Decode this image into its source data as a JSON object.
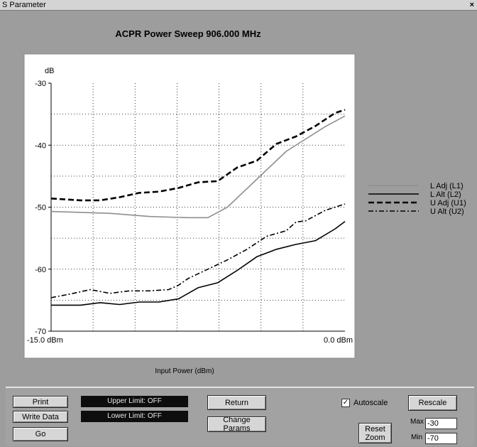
{
  "window": {
    "title": "S Parameter",
    "close_glyph": "×"
  },
  "chart_data": {
    "type": "line",
    "title": "ACPR Power Sweep 906.000 MHz",
    "xlabel": "Input Power (dBm)",
    "ylabel": "dB",
    "xlim": [
      -15,
      0
    ],
    "ylim": [
      -70,
      -30
    ],
    "x_tick_labels": [
      "-15.0 dBm",
      "0.0 dBm"
    ],
    "y_ticks": [
      -30,
      -40,
      -50,
      -60,
      -70
    ],
    "grid": true,
    "legend_position": "right",
    "series": [
      {
        "name": "L Adj (L1)",
        "style": "solid",
        "color": "#8e8e8e",
        "x": [
          -15,
          -12,
          -10,
          -9,
          -8,
          -7,
          -6,
          -5,
          -4,
          -3,
          -2,
          -1,
          0
        ],
        "y": [
          -50.7,
          -51.0,
          -51.5,
          -51.6,
          -51.7,
          -51.7,
          -50.0,
          -47.0,
          -44.0,
          -41.0,
          -39.0,
          -37.0,
          -35.3
        ]
      },
      {
        "name": "L Alt (L2)",
        "style": "solid",
        "color": "#000000",
        "x": [
          -15,
          -13.5,
          -12.5,
          -11.5,
          -10.5,
          -9.5,
          -8.5,
          -7.5,
          -6.5,
          -5.5,
          -4.5,
          -3.5,
          -2.5,
          -1.5,
          -0.5,
          0
        ],
        "y": [
          -65.8,
          -65.8,
          -65.4,
          -65.7,
          -65.3,
          -65.3,
          -64.8,
          -63.0,
          -62.2,
          -60.2,
          -58.0,
          -56.8,
          -56.0,
          -55.4,
          -53.5,
          -52.3
        ]
      },
      {
        "name": "U Adj (U1)",
        "style": "dashed",
        "color": "#000000",
        "x": [
          -15,
          -13.5,
          -12.5,
          -11.5,
          -10.5,
          -9.5,
          -8.5,
          -7.5,
          -6.5,
          -5.5,
          -4.5,
          -3.5,
          -2.5,
          -1.5,
          -0.5,
          0
        ],
        "y": [
          -48.6,
          -48.9,
          -48.9,
          -48.4,
          -47.7,
          -47.5,
          -46.9,
          -46.0,
          -45.8,
          -43.6,
          -42.5,
          -39.8,
          -38.6,
          -36.9,
          -34.8,
          -34.3
        ]
      },
      {
        "name": "U Alt (U2)",
        "style": "dashdot",
        "color": "#000000",
        "x": [
          -15,
          -14,
          -13,
          -12,
          -11,
          -10,
          -9,
          -8.5,
          -8,
          -7,
          -6,
          -5,
          -4,
          -3,
          -2.5,
          -2,
          -1,
          0
        ],
        "y": [
          -64.6,
          -64.0,
          -63.3,
          -63.9,
          -63.5,
          -63.5,
          -63.3,
          -62.6,
          -61.5,
          -60.0,
          -58.5,
          -56.8,
          -54.7,
          -53.8,
          -52.4,
          -52.2,
          -50.5,
          -49.5
        ]
      }
    ]
  },
  "controls": {
    "print_label": "Print",
    "write_data_label": "Write Data",
    "go_label": "Go",
    "upper_limit_status": "Upper Limit: OFF",
    "lower_limit_status": "Lower Limit: OFF",
    "return_label": "Return",
    "change_params_label": "Change Params",
    "autoscale_label": "Autoscale",
    "autoscale_checked": true,
    "reset_zoom_line1": "Reset",
    "reset_zoom_line2": "Zoom",
    "rescale_label": "Rescale",
    "max_label": "Max",
    "max_value": "-30",
    "min_label": "Min",
    "min_value": "-70"
  }
}
